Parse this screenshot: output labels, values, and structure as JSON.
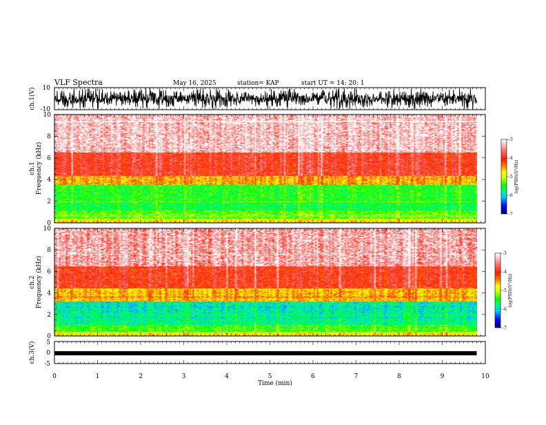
{
  "header": {
    "title": "VLF Spectra",
    "date": "May 16, 2025",
    "station": "station= KAP",
    "start": "start  UT  =   14: 20: 1"
  },
  "colors": {
    "spectrum": [
      "#000080",
      "#0000ff",
      "#00c8ff",
      "#00ff80",
      "#00ff00",
      "#c8ff00",
      "#ffff00",
      "#ff8000",
      "#ff2000",
      "#ff9090",
      "#ffffff"
    ],
    "waveform": "#000000"
  },
  "chart_data": [
    {
      "type": "line",
      "name": "ch1-waveform",
      "ylabel": "ch.1(V)",
      "ylim": [
        -10,
        10
      ],
      "yticks": [
        "10",
        "-10"
      ],
      "x_range_min": [
        0,
        9.8
      ]
    },
    {
      "type": "heatmap",
      "name": "ch1-spectrogram",
      "ylabel_top": "ch.1",
      "ylabel": "Frequency  (kHz)",
      "ylim": [
        0,
        10
      ],
      "yticks": [
        "0",
        "2",
        "4",
        "6",
        "8",
        "10"
      ],
      "x_range_min": [
        0,
        9.8
      ],
      "bands_khz": [
        {
          "from": 0.0,
          "to": 0.35,
          "level": 0.55
        },
        {
          "from": 0.35,
          "to": 1.1,
          "level": 0.42
        },
        {
          "from": 1.1,
          "to": 2.0,
          "level": 0.35
        },
        {
          "from": 2.0,
          "to": 3.5,
          "level": 0.38
        },
        {
          "from": 3.5,
          "to": 4.3,
          "level": 0.62
        },
        {
          "from": 4.3,
          "to": 6.5,
          "level": 0.78
        },
        {
          "from": 6.5,
          "to": 10.0,
          "level": 0.9
        }
      ],
      "colorbar": {
        "label": "log(PSD)(V²/Hz)",
        "min": -7,
        "max": -3,
        "ticks": [
          "-3",
          "-4",
          "-5",
          "-6",
          "-7"
        ]
      }
    },
    {
      "type": "heatmap",
      "name": "ch2-spectrogram",
      "ylabel_top": "ch.2",
      "ylabel": "Frequency  (kHz)",
      "ylim": [
        0,
        10
      ],
      "yticks": [
        "0",
        "2",
        "4",
        "6",
        "8",
        "10"
      ],
      "x_range_min": [
        0,
        9.8
      ],
      "bands_khz": [
        {
          "from": 0.0,
          "to": 0.35,
          "level": 0.55
        },
        {
          "from": 0.35,
          "to": 1.0,
          "level": 0.4
        },
        {
          "from": 1.0,
          "to": 2.1,
          "level": 0.3
        },
        {
          "from": 2.1,
          "to": 3.2,
          "level": 0.27
        },
        {
          "from": 3.2,
          "to": 4.4,
          "level": 0.6
        },
        {
          "from": 4.4,
          "to": 6.5,
          "level": 0.76
        },
        {
          "from": 6.5,
          "to": 10.0,
          "level": 0.86
        }
      ],
      "colorbar": {
        "label": "log(PSD)(V²/Hz)",
        "min": -7,
        "max": -3,
        "ticks": [
          "-3",
          "-4",
          "-5",
          "-6",
          "-7"
        ]
      }
    },
    {
      "type": "line",
      "name": "ch3-waveform",
      "ylabel": "ch.3(V)",
      "ylim": [
        -5,
        5
      ],
      "yticks": [
        "5",
        "0",
        "-5"
      ],
      "level": -0.3,
      "x_range_min": [
        0,
        9.8
      ]
    }
  ],
  "xaxis": {
    "label": "Time  (min)",
    "min": 0,
    "max": 10,
    "ticks": [
      "0",
      "1",
      "2",
      "3",
      "4",
      "5",
      "6",
      "7",
      "8",
      "9",
      "10"
    ]
  }
}
